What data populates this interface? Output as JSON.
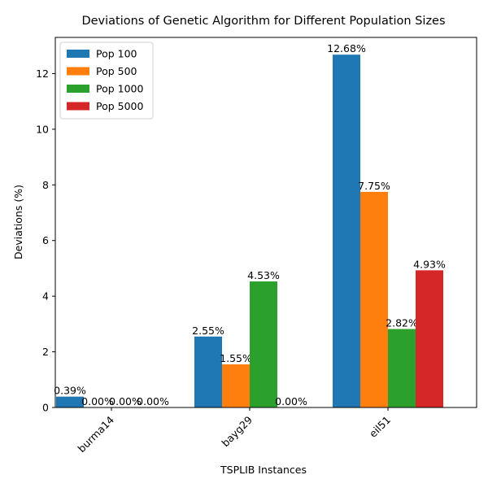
{
  "chart_data": {
    "type": "bar",
    "title": "Deviations of Genetic Algorithm for Different Population Sizes",
    "xlabel": "TSPLIB Instances",
    "ylabel": "Deviations (%)",
    "categories": [
      "burma14",
      "bayg29",
      "eil51"
    ],
    "series": [
      {
        "name": "Pop 100",
        "color": "#1f77b4",
        "values": [
          0.39,
          2.55,
          12.68
        ],
        "labels": [
          "0.39%",
          "2.55%",
          "12.68%"
        ]
      },
      {
        "name": "Pop 500",
        "color": "#ff7f0e",
        "values": [
          0.0,
          1.55,
          7.75
        ],
        "labels": [
          "0.00%",
          "1.55%",
          "7.75%"
        ]
      },
      {
        "name": "Pop 1000",
        "color": "#2ca02c",
        "values": [
          0.0,
          4.53,
          2.82
        ],
        "labels": [
          "0.00%",
          "4.53%",
          "2.82%"
        ]
      },
      {
        "name": "Pop 5000",
        "color": "#d62728",
        "values": [
          0.0,
          0.0,
          4.93
        ],
        "labels": [
          "0.00%",
          "0.00%",
          "4.93%"
        ]
      }
    ],
    "y_ticks": [
      0,
      2,
      4,
      6,
      8,
      10,
      12
    ],
    "ylim": [
      0,
      13.3
    ],
    "grid": false,
    "legend_position": "top-left"
  }
}
